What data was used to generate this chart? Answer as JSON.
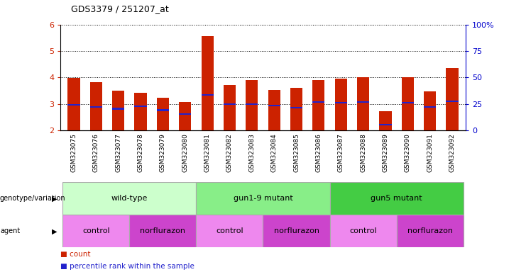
{
  "title": "GDS3379 / 251207_at",
  "samples": [
    "GSM323075",
    "GSM323076",
    "GSM323077",
    "GSM323078",
    "GSM323079",
    "GSM323080",
    "GSM323081",
    "GSM323082",
    "GSM323083",
    "GSM323084",
    "GSM323085",
    "GSM323086",
    "GSM323087",
    "GSM323088",
    "GSM323089",
    "GSM323090",
    "GSM323091",
    "GSM323092"
  ],
  "counts": [
    3.98,
    3.82,
    3.5,
    3.42,
    3.25,
    3.08,
    5.55,
    3.72,
    3.9,
    3.52,
    3.6,
    3.9,
    3.97,
    4.02,
    2.72,
    4.0,
    3.47,
    4.35
  ],
  "percentile_values": [
    2.97,
    2.9,
    2.82,
    2.92,
    2.77,
    2.63,
    3.35,
    3.0,
    3.0,
    2.95,
    2.87,
    3.07,
    3.05,
    3.07,
    2.23,
    3.05,
    2.88,
    3.1
  ],
  "bar_bottom": 2.0,
  "ylim_left": [
    2,
    6
  ],
  "ylim_right": [
    0,
    100
  ],
  "yticks_left": [
    2,
    3,
    4,
    5,
    6
  ],
  "yticks_right": [
    0,
    25,
    50,
    75,
    100
  ],
  "bar_color": "#cc2200",
  "percentile_color": "#2222cc",
  "grid_color": "#000000",
  "genotype_groups": [
    {
      "label": "wild-type",
      "start": 0,
      "end": 5,
      "color": "#ccffcc"
    },
    {
      "label": "gun1-9 mutant",
      "start": 6,
      "end": 11,
      "color": "#88ee88"
    },
    {
      "label": "gun5 mutant",
      "start": 12,
      "end": 17,
      "color": "#44cc44"
    }
  ],
  "agent_groups": [
    {
      "label": "control",
      "start": 0,
      "end": 2,
      "color": "#ee88ee"
    },
    {
      "label": "norflurazon",
      "start": 3,
      "end": 5,
      "color": "#cc44cc"
    },
    {
      "label": "control",
      "start": 6,
      "end": 8,
      "color": "#ee88ee"
    },
    {
      "label": "norflurazon",
      "start": 9,
      "end": 11,
      "color": "#cc44cc"
    },
    {
      "label": "control",
      "start": 12,
      "end": 14,
      "color": "#ee88ee"
    },
    {
      "label": "norflurazon",
      "start": 15,
      "end": 17,
      "color": "#cc44cc"
    }
  ],
  "tick_color_left": "#cc2200",
  "tick_color_right": "#0000cc",
  "legend_count_color": "#cc2200",
  "legend_pct_color": "#2222cc",
  "bg_color": "#ffffff",
  "xtick_bg_color": "#d8d8d8"
}
